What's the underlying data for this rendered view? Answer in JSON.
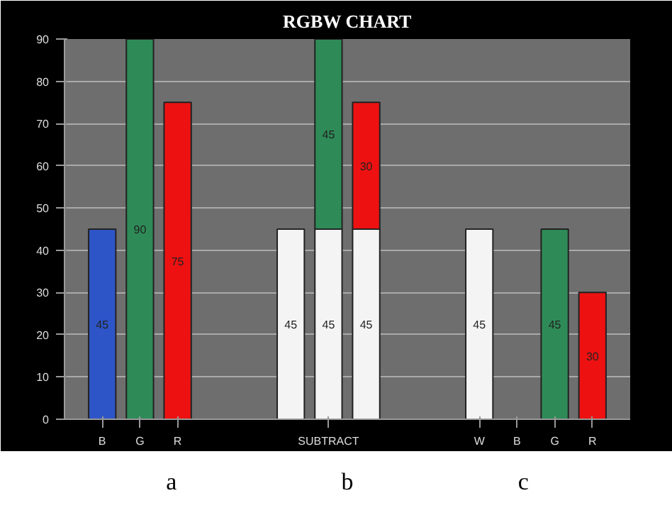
{
  "chart_data": {
    "type": "bar",
    "title": "RGBW CHART",
    "stacked": true,
    "data_labels": true,
    "grid": "y",
    "categories": [
      "B",
      "G",
      "R",
      null,
      null,
      null,
      "SUBTRACT",
      null,
      null,
      null,
      "W",
      "B",
      "G",
      "R"
    ],
    "series": [
      {
        "colors": [
          "#2e55c8",
          "#2e8b57",
          "#ee1111",
          null,
          null,
          "#f4f4f4",
          "#f4f4f4",
          "#f4f4f4",
          null,
          null,
          "#f4f4f4",
          null,
          "#2e8b57",
          "#ee1111"
        ],
        "values": [
          45,
          90,
          75,
          null,
          null,
          45,
          45,
          45,
          null,
          null,
          45,
          null,
          45,
          30
        ]
      },
      {
        "colors": [
          null,
          null,
          null,
          null,
          null,
          null,
          "#2e8b57",
          "#ee1111",
          null,
          null,
          null,
          null,
          null,
          null
        ],
        "values": [
          null,
          null,
          null,
          null,
          null,
          null,
          45,
          30,
          null,
          null,
          null,
          null,
          null,
          null
        ]
      }
    ],
    "ylim": [
      0,
      90
    ],
    "yticks": [
      0,
      10,
      20,
      30,
      40,
      50,
      60,
      70,
      80,
      90
    ],
    "annotations": [
      "a",
      "b",
      "c"
    ]
  }
}
